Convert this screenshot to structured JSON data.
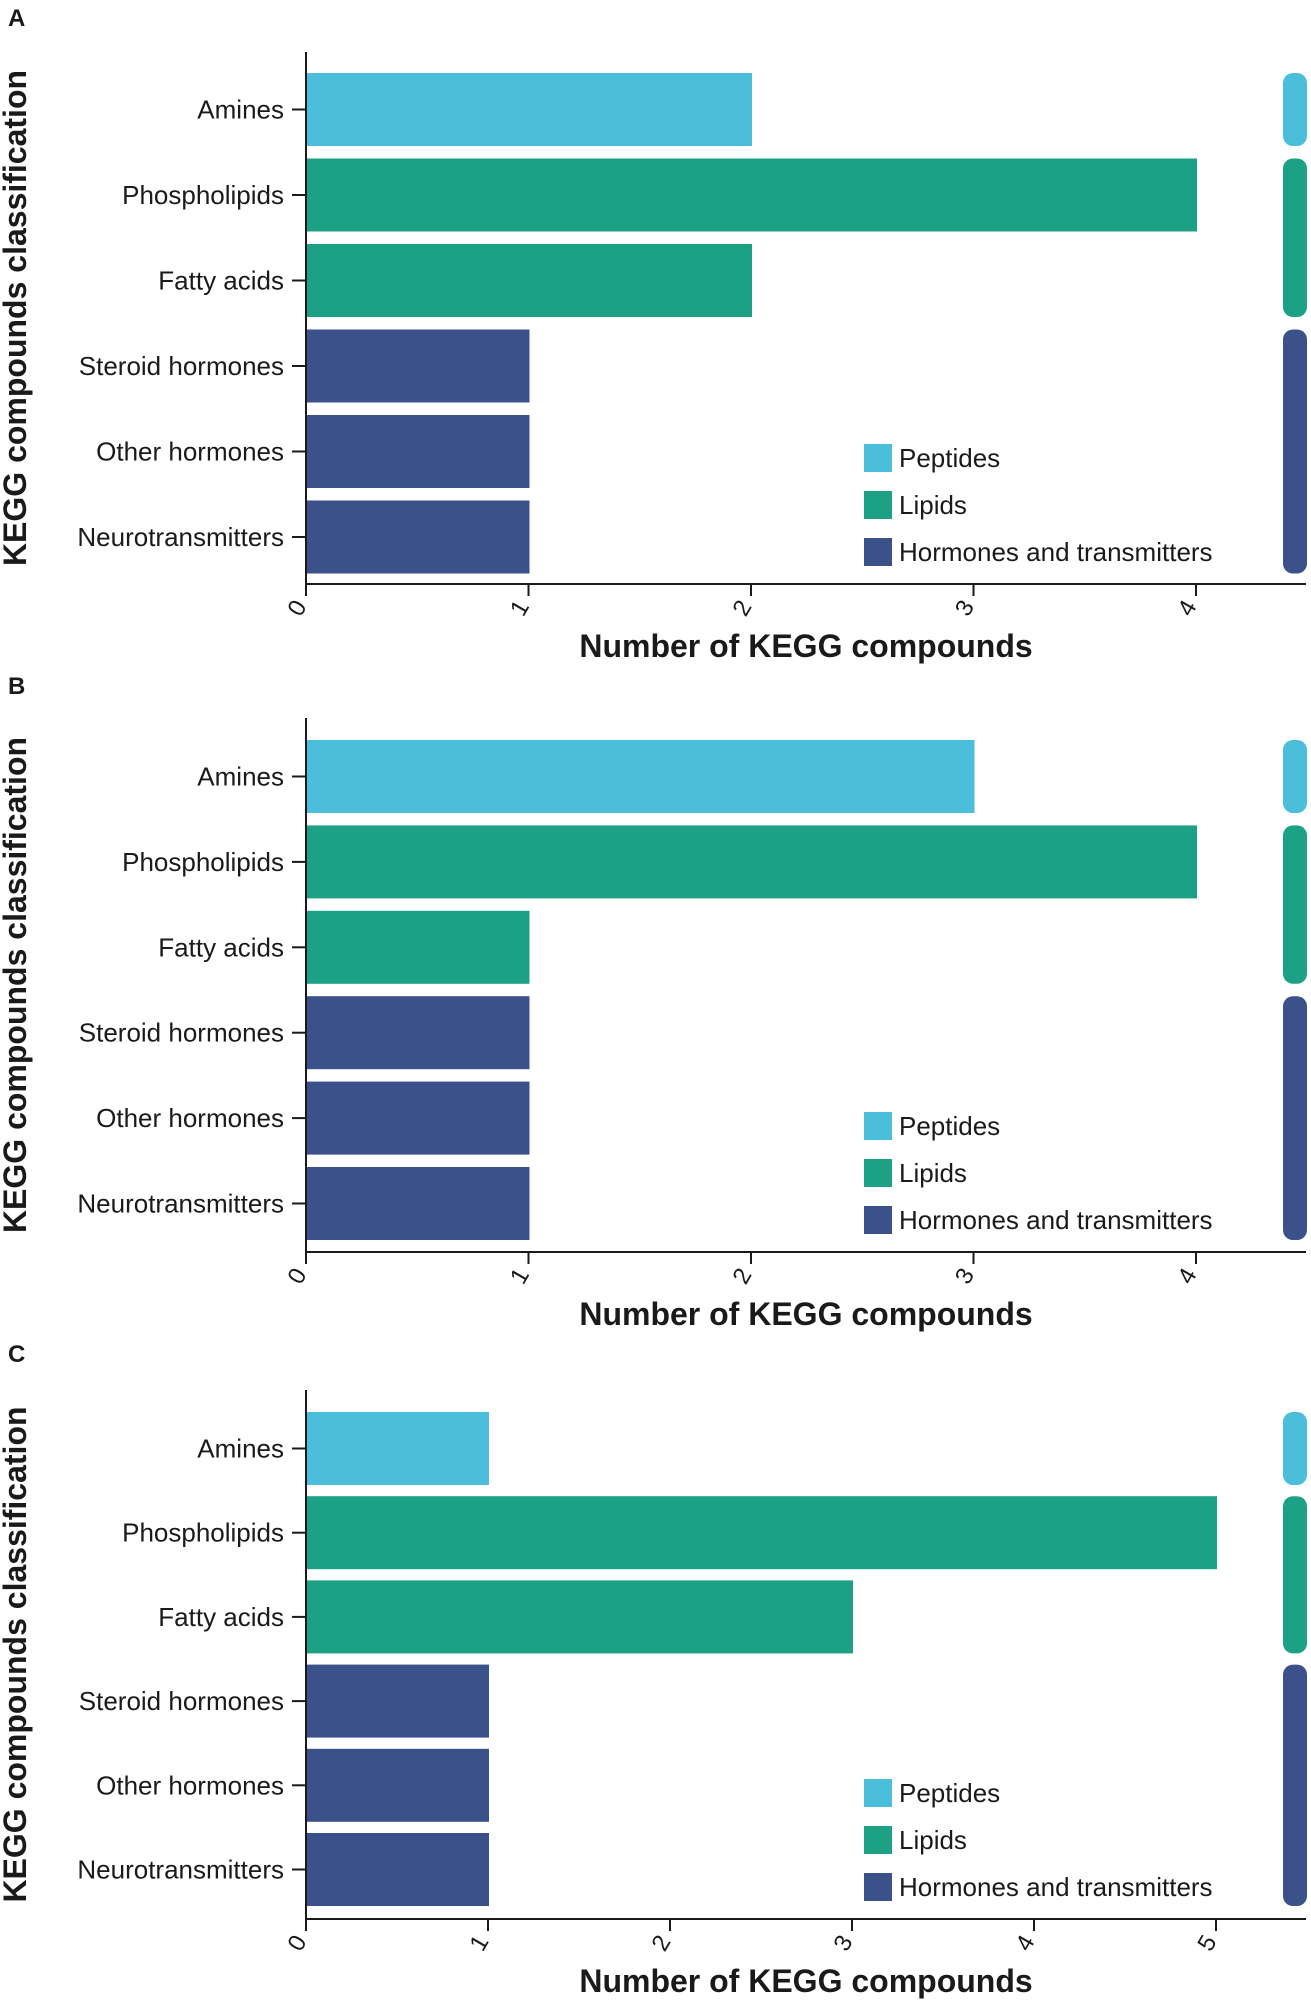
{
  "chart_data": [
    {
      "panel": "A",
      "type": "bar",
      "orientation": "horizontal",
      "categories": [
        "Amines",
        "Phospholipids",
        "Fatty acids",
        "Steroid hormones",
        "Other hormones",
        "Neurotransmitters"
      ],
      "values": [
        2,
        4,
        2,
        1,
        1,
        1
      ],
      "groups": [
        "Peptides",
        "Lipids",
        "Lipids",
        "Hormones and transmitters",
        "Hormones and transmitters",
        "Hormones and transmitters"
      ],
      "xlabel": "Number of KEGG compounds",
      "ylabel": "KEGG compounds classification",
      "xticks": [
        "0",
        "1",
        "2",
        "3",
        "4"
      ],
      "xlim": [
        0,
        4.5
      ],
      "legend": [
        "Peptides",
        "Lipids",
        "Hormones and transmitters"
      ],
      "legend_position": "bottom-right"
    },
    {
      "panel": "B",
      "type": "bar",
      "orientation": "horizontal",
      "categories": [
        "Amines",
        "Phospholipids",
        "Fatty acids",
        "Steroid hormones",
        "Other hormones",
        "Neurotransmitters"
      ],
      "values": [
        3,
        4,
        1,
        1,
        1,
        1
      ],
      "groups": [
        "Peptides",
        "Lipids",
        "Lipids",
        "Hormones and transmitters",
        "Hormones and transmitters",
        "Hormones and transmitters"
      ],
      "xlabel": "Number of KEGG compounds",
      "ylabel": "KEGG compounds classification",
      "xticks": [
        "0",
        "1",
        "2",
        "3",
        "4"
      ],
      "xlim": [
        0,
        4.5
      ],
      "legend": [
        "Peptides",
        "Lipids",
        "Hormones and transmitters"
      ],
      "legend_position": "bottom-right"
    },
    {
      "panel": "C",
      "type": "bar",
      "orientation": "horizontal",
      "categories": [
        "Amines",
        "Phospholipids",
        "Fatty acids",
        "Steroid hormones",
        "Other hormones",
        "Neurotransmitters"
      ],
      "values": [
        1,
        5,
        3,
        1,
        1,
        1
      ],
      "groups": [
        "Peptides",
        "Lipids",
        "Lipids",
        "Hormones and transmitters",
        "Hormones and transmitters",
        "Hormones and transmitters"
      ],
      "xlabel": "Number of KEGG compounds",
      "ylabel": "KEGG compounds classification",
      "xticks": [
        "0",
        "1",
        "2",
        "3",
        "4",
        "5"
      ],
      "xlim": [
        0,
        5.5
      ],
      "legend": [
        "Peptides",
        "Lipids",
        "Hormones and transmitters"
      ],
      "legend_position": "bottom-right"
    }
  ],
  "colors": {
    "Peptides": "#4BBEDB",
    "Lipids": "#1CA185",
    "Hormones and transmitters": "#3A5289",
    "axis": "#1a1a1a"
  }
}
